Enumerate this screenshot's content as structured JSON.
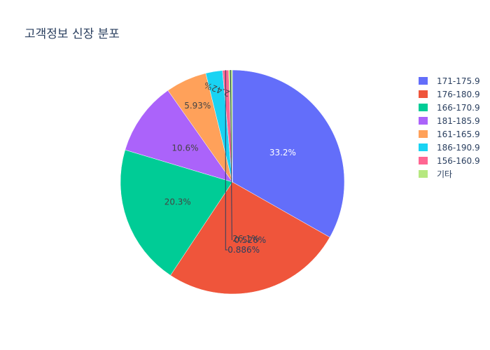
{
  "chart_data": {
    "type": "pie",
    "title": "고객정보 신장 분포",
    "categories": [
      "171-175.9",
      "176-180.9",
      "166-170.9",
      "181-185.9",
      "161-165.9",
      "186-190.9",
      "156-160.9",
      "기타"
    ],
    "values": [
      33.2,
      26.1,
      20.3,
      10.6,
      5.93,
      2.42,
      0.886,
      0.526
    ],
    "labels": [
      "33.2%",
      "26.1%",
      "20.3%",
      "10.6%",
      "5.93%",
      "2.42%",
      "0.886%",
      "0.526%"
    ],
    "colors": [
      "#636efa",
      "#EF553B",
      "#00cc96",
      "#ab63fa",
      "#FFA15A",
      "#19d3f3",
      "#FF6692",
      "#B6E880"
    ],
    "label_colors": [
      "#ffffff",
      "#444444",
      "#444444",
      "#444444",
      "#444444",
      "#444444",
      "#2a3f5f",
      "#2a3f5f"
    ],
    "legend_position": "right"
  }
}
